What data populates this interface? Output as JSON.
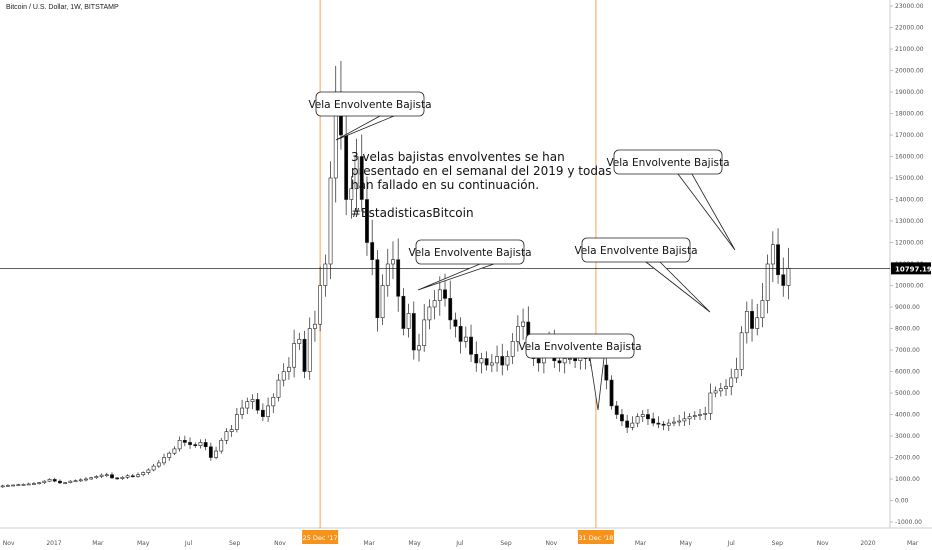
{
  "header": {
    "title": "Bitcoin / U.S. Dollar, 1W, BITSTAMP"
  },
  "colors": {
    "up_fill": "#ffffff",
    "down_fill": "#000000",
    "wick": "#222222",
    "vline": "#f7a350",
    "date_badge": "#f7931a",
    "price_badge": "#000000",
    "axis_border": "#cccccc"
  },
  "price_line": {
    "value": 10797.19,
    "label": "10797.19"
  },
  "vlines": [
    {
      "date": "2017-12-25",
      "label": "25 Dec '17"
    },
    {
      "date": "2018-12-31",
      "label": "31 Dec '18"
    }
  ],
  "annotations": [
    {
      "text": "Vela Envolvente Bajista",
      "anchor": {
        "date": "2017-12-25",
        "price": 14000
      }
    },
    {
      "text": "Vela Envolvente Bajista",
      "anchor": {
        "date": "2018-05-06",
        "price": 9700
      }
    },
    {
      "text": "Vela Envolvente Bajista",
      "anchor": {
        "date": "2019-01-06",
        "price": 4200
      }
    },
    {
      "text": "Vela Envolvente Bajista",
      "anchor": {
        "date": "2019-06-02",
        "price": 8800
      }
    },
    {
      "text": "Vela Envolvente Bajista",
      "anchor": {
        "date": "2019-07-07",
        "price": 11700
      }
    }
  ],
  "note": {
    "lines": [
      "3 velas bajistas envolventes se han",
      "presentado en el semanal del 2019 y todas",
      "han fallado en su continuación.",
      "",
      "#EstadisticasBitcoin"
    ]
  },
  "chart_data": {
    "type": "candlestick",
    "title": "Bitcoin / U.S. Dollar, 1W, BITSTAMP",
    "ylim": [
      -1000,
      23000
    ],
    "y_ticks": [
      23000,
      22000,
      21000,
      20000,
      19000,
      18000,
      17000,
      16000,
      15000,
      14000,
      13000,
      12000,
      11000,
      10000,
      9000,
      8000,
      7000,
      6000,
      5000,
      4000,
      3000,
      2000,
      1000,
      0,
      -1000
    ],
    "x_ticks": [
      {
        "date": "2016-11-01",
        "label": "Nov"
      },
      {
        "date": "2017-01-01",
        "label": "2017"
      },
      {
        "date": "2017-03-01",
        "label": "Mar"
      },
      {
        "date": "2017-05-01",
        "label": "May"
      },
      {
        "date": "2017-07-01",
        "label": "Jul"
      },
      {
        "date": "2017-09-01",
        "label": "Sep"
      },
      {
        "date": "2017-11-01",
        "label": "Nov"
      },
      {
        "date": "2018-03-01",
        "label": "Mar"
      },
      {
        "date": "2018-05-01",
        "label": "May"
      },
      {
        "date": "2018-07-01",
        "label": "Jul"
      },
      {
        "date": "2018-09-01",
        "label": "Sep"
      },
      {
        "date": "2018-11-01",
        "label": "Nov"
      },
      {
        "date": "2019-03-01",
        "label": "Mar"
      },
      {
        "date": "2019-05-01",
        "label": "May"
      },
      {
        "date": "2019-07-01",
        "label": "Jul"
      },
      {
        "date": "2019-09-01",
        "label": "Sep"
      },
      {
        "date": "2019-11-01",
        "label": "Nov"
      },
      {
        "date": "2020-01-01",
        "label": "2020"
      },
      {
        "date": "2020-03-01",
        "label": "Mar"
      }
    ],
    "first_week": "2016-10-03",
    "weekly_closes": [
      610,
      620,
      640,
      680,
      700,
      720,
      740,
      750,
      770,
      790,
      830,
      900,
      980,
      900,
      820,
      830,
      900,
      920,
      960,
      1000,
      1060,
      1120,
      1180,
      1200,
      1050,
      1020,
      1080,
      1150,
      1120,
      1200,
      1300,
      1420,
      1600,
      1750,
      2000,
      2200,
      2400,
      2800,
      2700,
      2600,
      2550,
      2700,
      2500,
      2000,
      2300,
      2800,
      3200,
      3300,
      4000,
      4300,
      4600,
      4700,
      4200,
      3900,
      4400,
      4800,
      5600,
      6000,
      6200,
      7300,
      7500,
      6000,
      8000,
      8200,
      10000,
      11000,
      15000,
      19000,
      17000,
      14000,
      14500,
      16000,
      14000,
      12000,
      11200,
      8500,
      10000,
      11000,
      11200,
      9500,
      8000,
      8700,
      7000,
      7200,
      8400,
      9000,
      9300,
      9800,
      9400,
      8400,
      8100,
      7400,
      7600,
      6800,
      6400,
      6600,
      6300,
      6400,
      6700,
      6300,
      6700,
      7400,
      8100,
      8300,
      7000,
      6600,
      6400,
      6900,
      7300,
      6500,
      6400,
      6600,
      6600,
      6500,
      6700,
      6600,
      6500,
      6400,
      6300,
      5600,
      4400,
      4000,
      3700,
      3400,
      3600,
      3900,
      4000,
      3800,
      3600,
      3550,
      3500,
      3600,
      3650,
      3700,
      3800,
      3900,
      3950,
      4000,
      4050,
      5000,
      5100,
      5200,
      5300,
      5700,
      6100,
      7800,
      8800,
      8000,
      8500,
      9300,
      11000,
      11900,
      10500,
      10000,
      10797
    ]
  }
}
